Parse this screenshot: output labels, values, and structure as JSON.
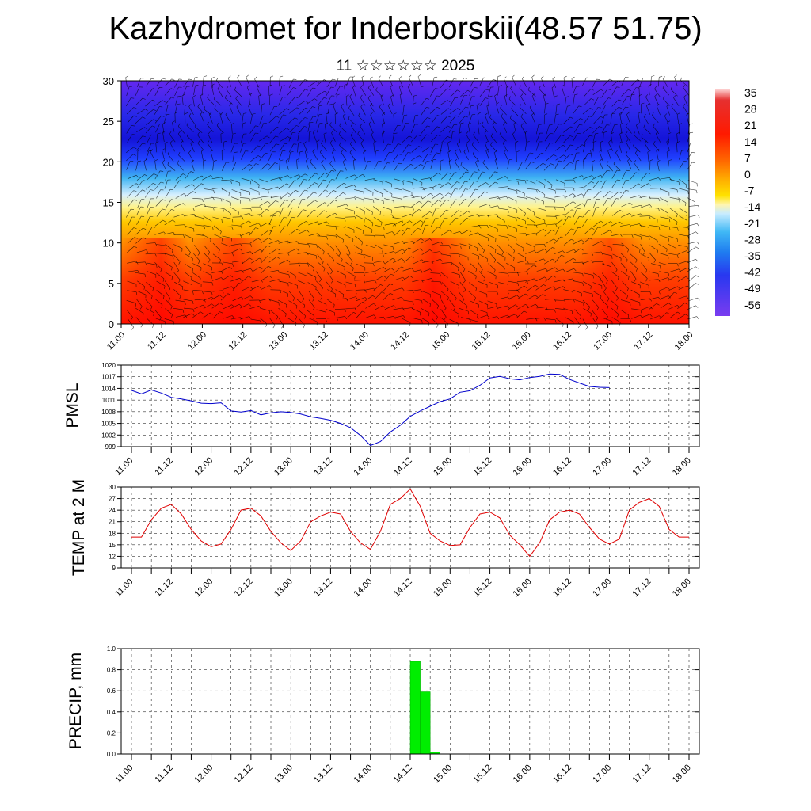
{
  "header": {
    "title": "Kazhydromet for Inderborskii(48.57 51.75)",
    "subtitle": "11 ☆☆☆☆☆☆ 2025"
  },
  "colors": {
    "pmsl_line": "#0000cc",
    "temp_line": "#e00000",
    "precip_bar": "#00ee00",
    "grid": "#000000"
  },
  "chart_data": [
    {
      "type": "heatmap",
      "title": "",
      "x_tick_labels": [
        "11.00",
        "11.12",
        "12.00",
        "12.12",
        "13.00",
        "13.12",
        "14.00",
        "14.12",
        "15.00",
        "15.12",
        "16.00",
        "16.12",
        "17.00",
        "17.12",
        "18.00"
      ],
      "y_tick_labels": [
        "0",
        "5",
        "10",
        "15",
        "20",
        "25",
        "30"
      ],
      "ylim": [
        0,
        30
      ],
      "overlay": "wind-barbs",
      "colorbar_labels": [
        "35",
        "28",
        "21",
        "14",
        "7",
        "0",
        "-7",
        "-14",
        "-21",
        "-28",
        "-35",
        "-42",
        "-49",
        "-56"
      ],
      "colorbar_range": [
        -63,
        42
      ]
    },
    {
      "type": "line",
      "ylabel": "PMSL",
      "ylim": [
        999,
        1020
      ],
      "y_tick_labels": [
        "1020",
        "1017",
        "1014",
        "1011",
        "1008",
        "1005",
        "1002",
        "999"
      ],
      "x_tick_labels": [
        "11.00",
        "11.12",
        "12.00",
        "12.12",
        "13.00",
        "13.12",
        "14.00",
        "14.12",
        "15.00",
        "15.12",
        "16.00",
        "16.12",
        "17.00",
        "17.12",
        "18.00"
      ],
      "x_step_hours": 3,
      "values": [
        1013.5,
        1012.6,
        1013.6,
        1012.8,
        1011.7,
        1011.3,
        1010.8,
        1010.2,
        1010.1,
        1010.3,
        1008.2,
        1007.9,
        1008.3,
        1007.2,
        1007.7,
        1008.0,
        1007.8,
        1007.4,
        1006.7,
        1006.3,
        1005.8,
        1005.0,
        1003.9,
        1001.9,
        999.3,
        1000.3,
        1002.8,
        1004.5,
        1006.8,
        1008.2,
        1009.4,
        1010.6,
        1011.3,
        1013.0,
        1013.4,
        1014.8,
        1016.7,
        1017.1,
        1016.5,
        1016.2,
        1016.8,
        1017.1,
        1017.7,
        1017.6,
        1016.3,
        1015.4,
        1014.5,
        1014.3,
        1014.2
      ]
    },
    {
      "type": "line",
      "ylabel": "TEMP at 2 M",
      "ylim": [
        9,
        30
      ],
      "y_tick_labels": [
        "30",
        "27",
        "24",
        "21",
        "18",
        "15",
        "12",
        "9"
      ],
      "x_tick_labels": [
        "11.00",
        "11.12",
        "12.00",
        "12.12",
        "13.00",
        "13.12",
        "14.00",
        "14.12",
        "15.00",
        "15.12",
        "16.00",
        "16.12",
        "17.00",
        "17.12",
        "18.00"
      ],
      "x_step_hours": 3,
      "values": [
        17.0,
        17.0,
        21.5,
        24.5,
        25.5,
        23.0,
        19.0,
        16.0,
        14.5,
        15.2,
        19.0,
        24.0,
        24.5,
        22.5,
        18.5,
        15.5,
        13.5,
        16.0,
        21.0,
        22.5,
        23.5,
        23.0,
        18.5,
        15.5,
        13.8,
        18.5,
        25.5,
        27.0,
        29.5,
        25.0,
        18.0,
        16.0,
        14.8,
        15.0,
        19.5,
        23.0,
        23.5,
        22.0,
        17.5,
        15.0,
        12.0,
        15.5,
        21.5,
        23.5,
        24.0,
        23.0,
        19.5,
        16.5,
        15.2,
        16.5,
        24.0,
        26.0,
        27.0,
        25.0,
        19.0,
        17.0,
        17.0
      ]
    },
    {
      "type": "bar",
      "ylabel": "PRECIP, mm",
      "ylim": [
        0,
        1
      ],
      "y_tick_labels": [
        "1.0",
        "0.8",
        "0.6",
        "0.4",
        "0.2",
        "0.0"
      ],
      "x_tick_labels": [
        "11.00",
        "11.12",
        "12.00",
        "12.12",
        "13.00",
        "13.12",
        "14.00",
        "14.12",
        "15.00",
        "15.12",
        "16.00",
        "16.12",
        "17.00",
        "17.12",
        "18.00"
      ],
      "bars": [
        {
          "x_hours": 84,
          "value": 0.88
        },
        {
          "x_hours": 87,
          "value": 0.59
        },
        {
          "x_hours": 90,
          "value": 0.02
        }
      ]
    }
  ]
}
